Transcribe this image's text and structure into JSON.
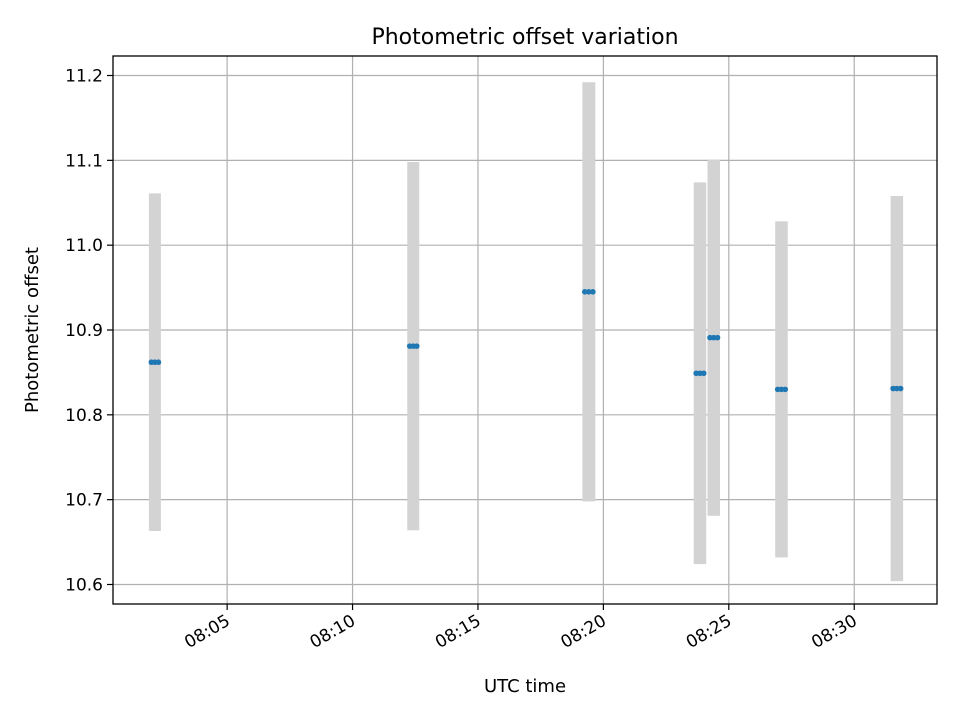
{
  "chart_data": {
    "type": "scatter",
    "title": "Photometric offset variation",
    "xlabel": "UTC time",
    "ylabel": "Photometric offset",
    "x_tick_labels": [
      "08:05",
      "08:10",
      "08:15",
      "08:20",
      "08:25",
      "08:30"
    ],
    "y_tick_labels": [
      "10.6",
      "10.7",
      "10.8",
      "10.9",
      "11.0",
      "11.1",
      "11.2"
    ],
    "x_ticks_minutes": [
      5,
      10,
      15,
      20,
      25,
      30
    ],
    "y_ticks": [
      10.6,
      10.7,
      10.8,
      10.9,
      11.0,
      11.1,
      11.2
    ],
    "xlim_minutes": [
      0.45,
      33.3
    ],
    "ylim": [
      10.577,
      11.223
    ],
    "x_unit_note": "minutes after 08:00 UTC",
    "grid": true,
    "colors": {
      "marker": "#1f77b4",
      "errorbar": "#d3d3d3"
    },
    "series": [
      {
        "x": [
          1.98,
          2.12,
          2.26
        ],
        "y": [
          10.862,
          10.862,
          10.862
        ],
        "yerr": [
          0.199,
          0.199,
          0.199
        ]
      },
      {
        "x": [
          12.28,
          12.42,
          12.56
        ],
        "y": [
          10.881,
          10.881,
          10.881
        ],
        "yerr": [
          0.217,
          0.217,
          0.217
        ]
      },
      {
        "x": [
          19.26,
          19.42,
          19.58
        ],
        "y": [
          10.945,
          10.945,
          10.945
        ],
        "yerr": [
          0.247,
          0.247,
          0.247
        ]
      },
      {
        "x": [
          23.7,
          23.85,
          24.0
        ],
        "y": [
          10.849,
          10.849,
          10.849
        ],
        "yerr": [
          0.225,
          0.225,
          0.225
        ]
      },
      {
        "x": [
          24.25,
          24.4,
          24.55
        ],
        "y": [
          10.891,
          10.891,
          10.891
        ],
        "yerr": [
          0.21,
          0.21,
          0.21
        ]
      },
      {
        "x": [
          26.95,
          27.1,
          27.25
        ],
        "y": [
          10.83,
          10.83,
          10.83
        ],
        "yerr": [
          0.198,
          0.198,
          0.198
        ]
      },
      {
        "x": [
          31.55,
          31.7,
          31.85
        ],
        "y": [
          10.831,
          10.831,
          10.831
        ],
        "yerr": [
          0.227,
          0.227,
          0.227
        ]
      }
    ]
  }
}
